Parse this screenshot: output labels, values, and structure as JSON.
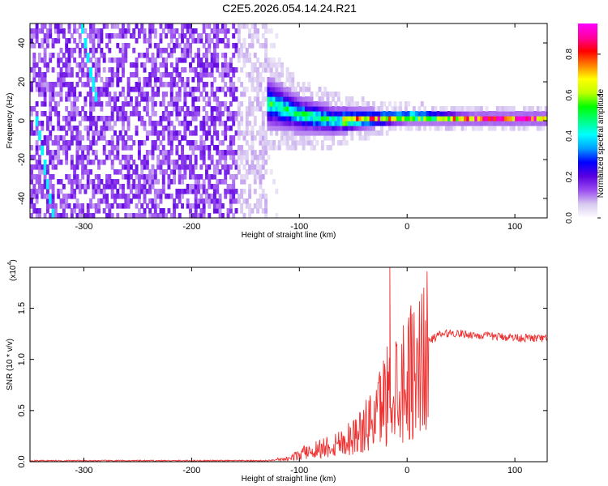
{
  "figure": {
    "title": "C2E5.2026.054.14.24.R21"
  },
  "chart_data": [
    {
      "type": "heatmap",
      "title": "C2E5.2026.054.14.24.R21",
      "xlabel": "Height of straight line (km)",
      "ylabel": "Frequency (Hz)",
      "xlim": [
        -350,
        130
      ],
      "ylim": [
        -50,
        50
      ],
      "xticks": [
        -300,
        -200,
        -100,
        0,
        100
      ],
      "yticks": [
        40,
        20,
        0,
        -20,
        -40
      ],
      "colorbar": {
        "label": "Normalized spectral amplitude",
        "range": [
          0.0,
          0.95
        ],
        "ticks": [
          0.0,
          0.2,
          0.4,
          0.6,
          0.8
        ],
        "colormap": [
          "#ffffff",
          "#d8c8f0",
          "#9a4cf0",
          "#5a00e0",
          "#0000ff",
          "#00a0ff",
          "#00ffff",
          "#00ff80",
          "#00ff00",
          "#c0ff00",
          "#ffff00",
          "#ff8000",
          "#ff0000",
          "#ff00a0",
          "#ff00ff"
        ]
      },
      "regions": [
        {
          "name": "noise",
          "x": [
            -350,
            -130
          ],
          "freq_range": [
            -50,
            50
          ],
          "amplitude": 0.15
        },
        {
          "name": "carrier",
          "x": [
            -130,
            130
          ],
          "center_freq": [
            8,
            2,
            -1,
            0,
            1,
            0,
            0
          ],
          "center_x": [
            -130,
            -100,
            -70,
            -30,
            0,
            60,
            130
          ],
          "width_hz": [
            14,
            10,
            8,
            5,
            4,
            3,
            3
          ],
          "amplitude_peak": 0.9
        },
        {
          "name": "spur-1",
          "x": [
            -345,
            -330
          ],
          "freq_range": [
            -50,
            0
          ],
          "amplitude": 0.4
        },
        {
          "name": "spur-2",
          "x": [
            -304,
            -290
          ],
          "freq_range": [
            10,
            50
          ],
          "amplitude": 0.4
        }
      ]
    },
    {
      "type": "line",
      "title": "",
      "xlabel": "Height of straight line (km)",
      "ylabel": "SNR (10 * v/v)",
      "y_multiplier_label": "(x10",
      "y_multiplier_exp": "4",
      "xlim": [
        -350,
        130
      ],
      "ylim": [
        0,
        1.9
      ],
      "xticks": [
        -300,
        -200,
        -100,
        0,
        100
      ],
      "yticks": [
        0.0,
        0.5,
        1.0,
        1.5
      ],
      "color": "#ee3030",
      "series": [
        {
          "x": [
            -350,
            -300,
            -200,
            -130,
            -110,
            -100,
            -90,
            -80,
            -70,
            -60,
            -50,
            -40,
            -30,
            -25,
            -20,
            -15,
            -10,
            0,
            10,
            20,
            30,
            40,
            50,
            70,
            90,
            110,
            130
          ],
          "y": [
            0.01,
            0.01,
            0.01,
            0.01,
            0.03,
            0.08,
            0.12,
            0.15,
            0.18,
            0.22,
            0.28,
            0.35,
            0.5,
            0.6,
            0.72,
            0.8,
            0.85,
            0.95,
            1.08,
            1.18,
            1.24,
            1.26,
            1.25,
            1.23,
            1.22,
            1.21,
            1.2
          ],
          "spike": {
            "x": -16,
            "y": 1.9
          }
        }
      ]
    }
  ]
}
